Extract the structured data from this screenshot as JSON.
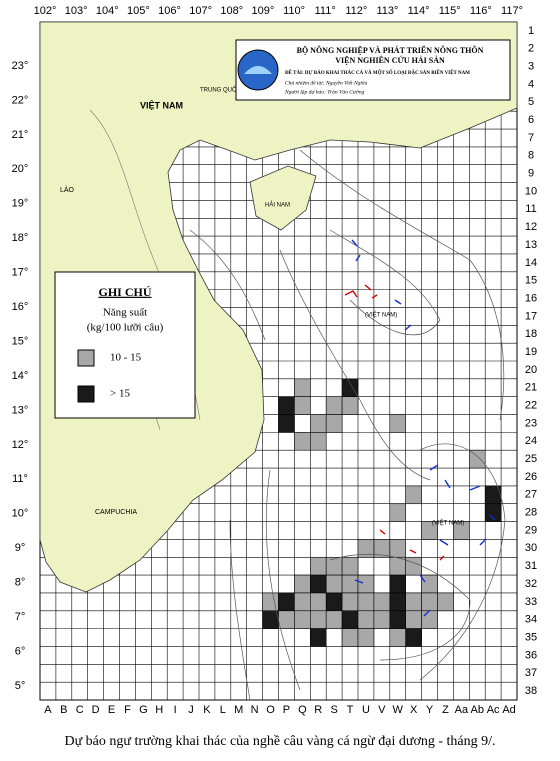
{
  "longitude_labels": [
    "102°",
    "103°",
    "104°",
    "105°",
    "106°",
    "107°",
    "108°",
    "109°",
    "110°",
    "111°",
    "112°",
    "113°",
    "114°",
    "115°",
    "116°",
    "117°"
  ],
  "latitude_labels": [
    "23°",
    "22°",
    "21°",
    "20°",
    "19°",
    "18°",
    "17°",
    "16°",
    "15°",
    "14°",
    "13°",
    "12°",
    "11°",
    "10°",
    "9°",
    "8°",
    "7°",
    "6°",
    "5°"
  ],
  "row_labels": [
    "1",
    "2",
    "3",
    "4",
    "5",
    "6",
    "7",
    "8",
    "9",
    "10",
    "11",
    "12",
    "13",
    "14",
    "15",
    "16",
    "17",
    "18",
    "19",
    "20",
    "21",
    "22",
    "23",
    "24",
    "25",
    "26",
    "27",
    "28",
    "29",
    "30",
    "31",
    "32",
    "33",
    "34",
    "35",
    "36",
    "37",
    "38"
  ],
  "column_labels": [
    "A",
    "B",
    "C",
    "D",
    "E",
    "F",
    "G",
    "H",
    "I",
    "J",
    "K",
    "L",
    "M",
    "N",
    "O",
    "P",
    "Q",
    "R",
    "S",
    "T",
    "U",
    "V",
    "W",
    "X",
    "Y",
    "Z",
    "Aa",
    "Ab",
    "Ac",
    "Ad"
  ],
  "header": {
    "ministry": "BỘ NÔNG NGHIỆP VÀ PHÁT TRIỂN NÔNG THÔN",
    "institute": "VIỆN NGHIÊN CỨU HẢI SẢN",
    "project": "ĐỀ TÀI: DỰ BÁO KHAI THÁC CÁ VÀ MỘT SỐ LOẠI ĐẶC SẢN BIỂN VIỆT NAM",
    "lead": "Chủ nhiệm đề tài: Nguyễn Viết Nghĩa",
    "author": "Người lập dự báo: Trần Văn Cường"
  },
  "places": {
    "vietnam": "VIỆT NAM",
    "china": "TRUNG QUỐC",
    "laos": "LÀO",
    "hainan": "HẢI NAM",
    "cambodia": "CAMPUCHIA",
    "paracel": "(VIỆT NAM)",
    "spratly": "(VIỆT NAM)"
  },
  "legend": {
    "title": "GHI CHÚ",
    "subtitle": "Năng suất",
    "unit": "(kg/100 lưỡi câu)",
    "items": [
      {
        "label": "10 - 15"
      },
      {
        "label": "> 15"
      }
    ]
  },
  "caption": "Dự báo ngư trường khai thác của nghề câu vàng cá ngừ đại dương - tháng 9/."
}
